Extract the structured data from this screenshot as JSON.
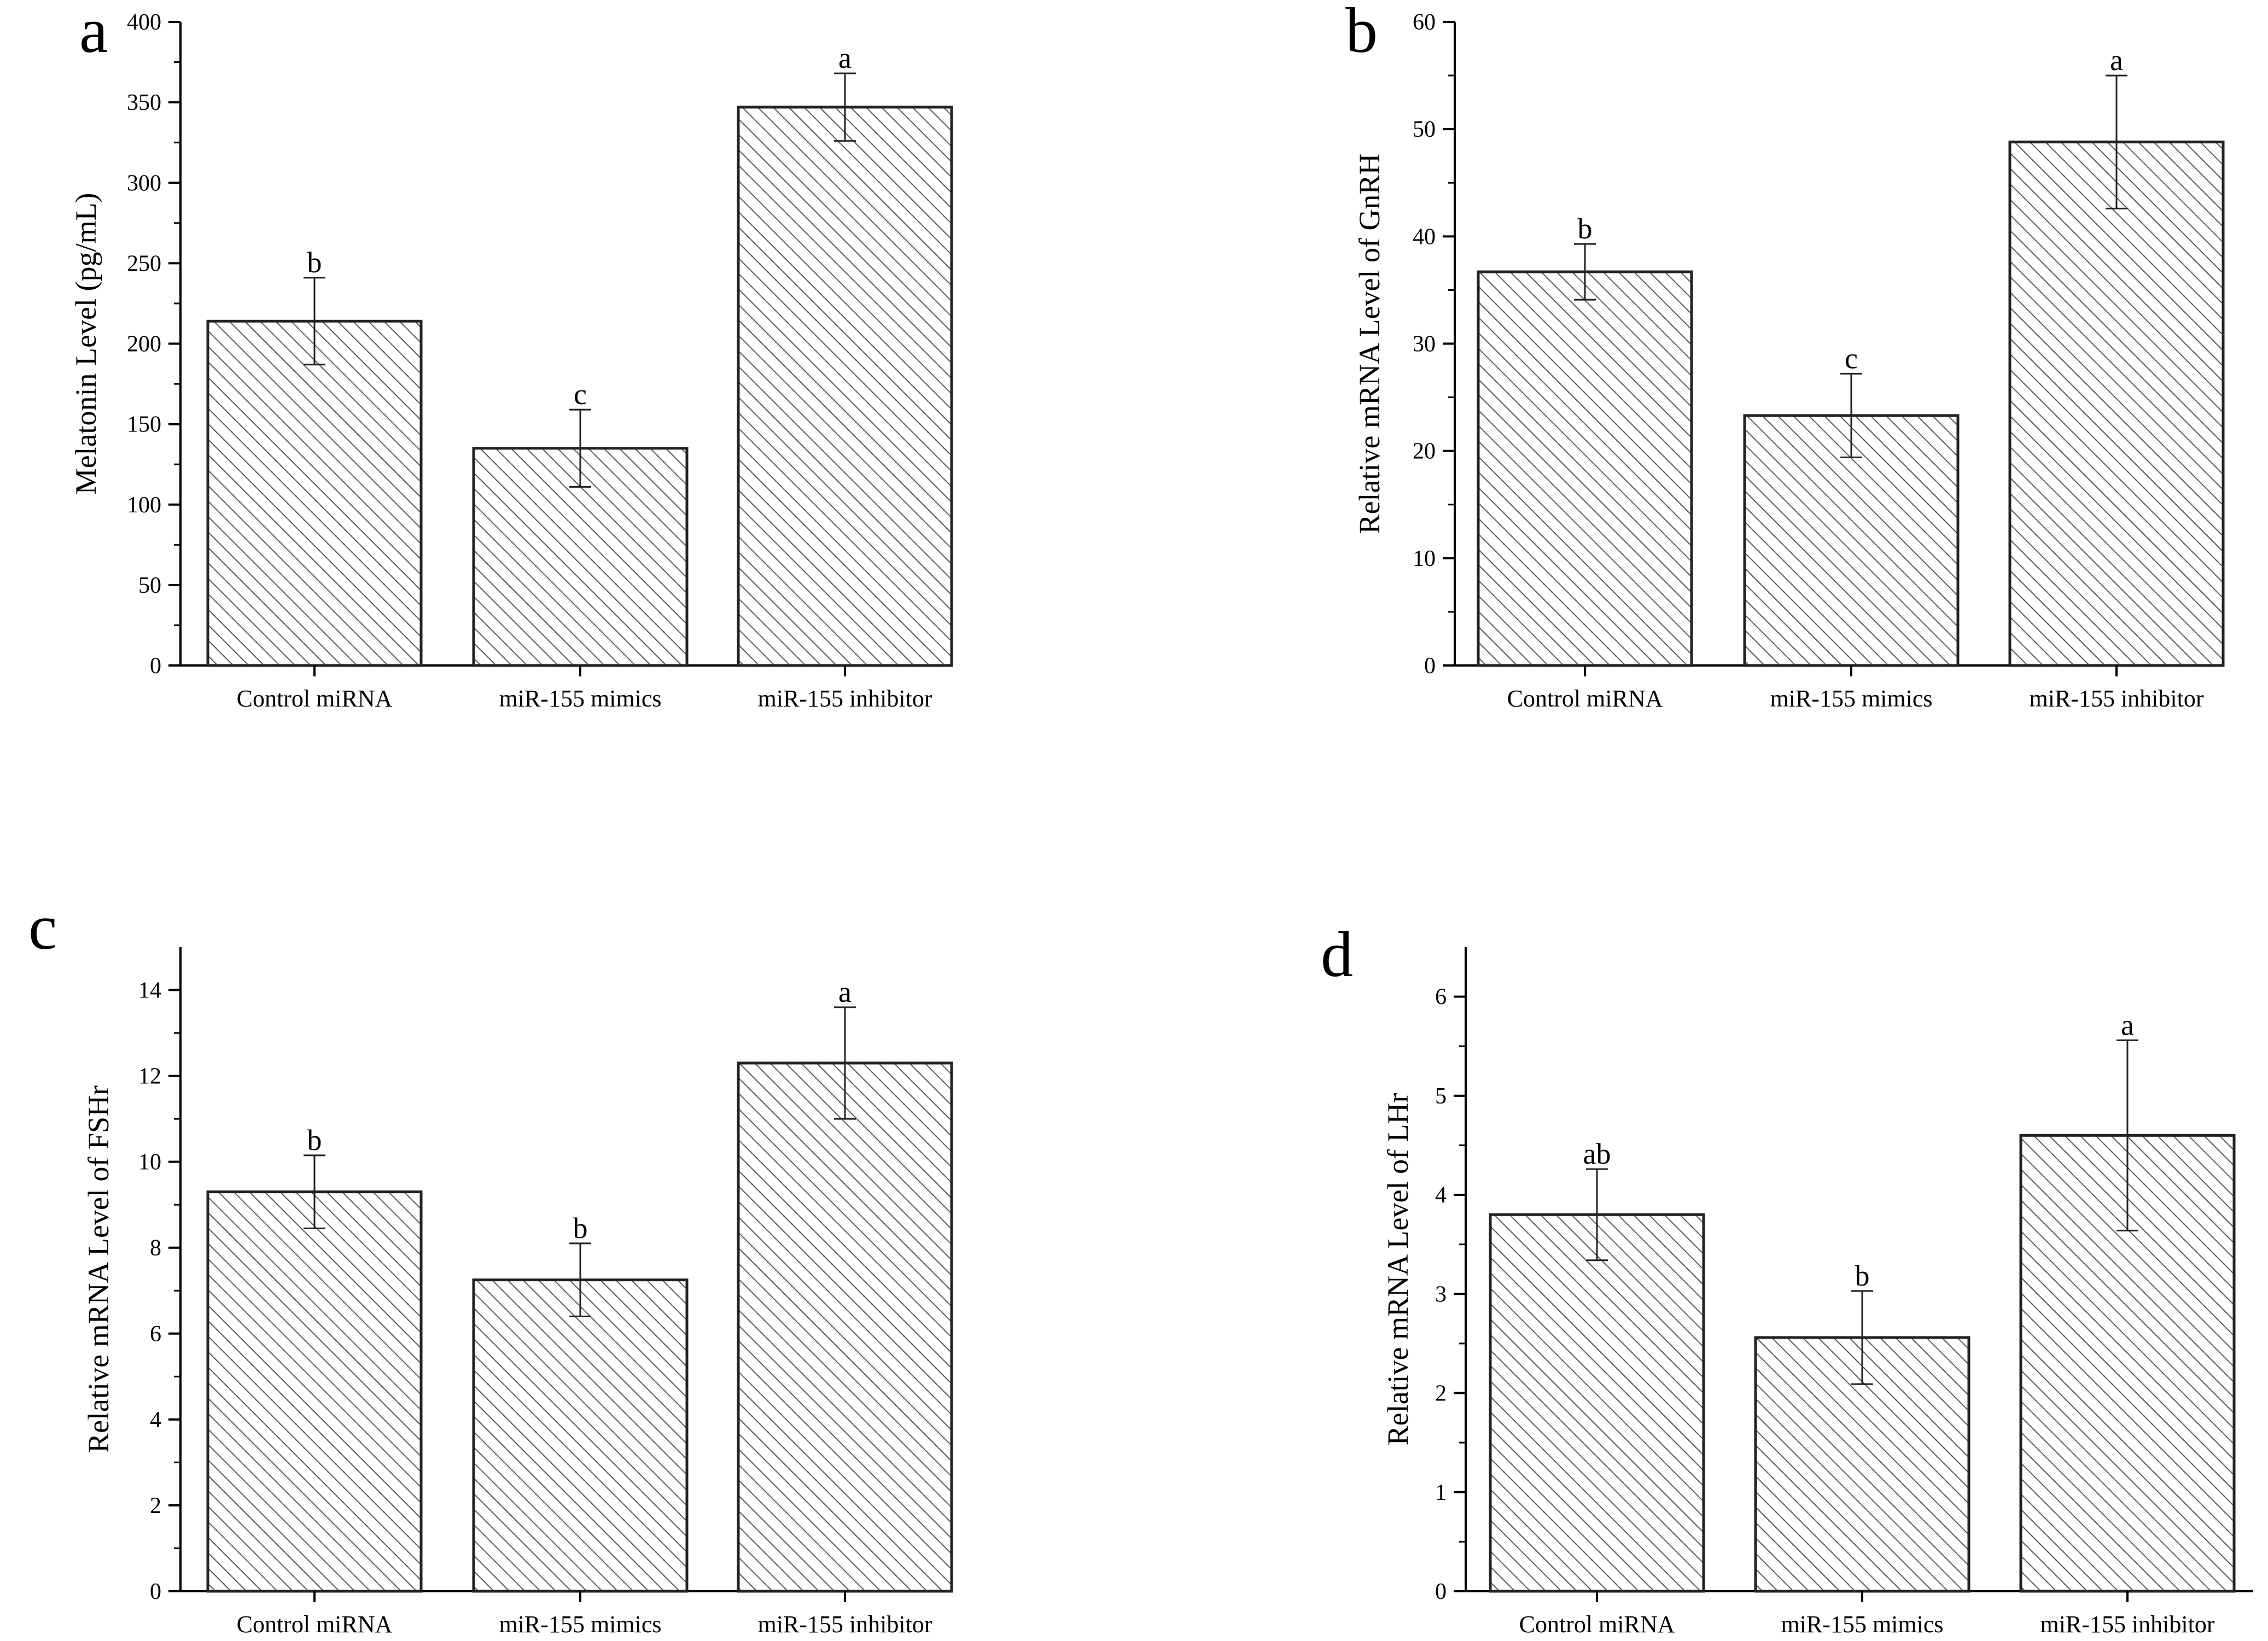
{
  "colors": {
    "bar_fill": "#ffffff",
    "hatch": "#5a5a5a",
    "axis": "#000000",
    "bar_stroke": "#222222"
  },
  "chart_data": [
    {
      "type": "bar",
      "panel_label": "a",
      "categories": [
        "Control miRNA",
        "miR-155 mimics",
        "miR-155 inhibitor"
      ],
      "values": [
        214,
        135,
        347
      ],
      "errors": [
        27,
        24,
        21
      ],
      "significance": [
        "b",
        "c",
        "a"
      ],
      "ylabel": "Melatonin Level (pg/mL)",
      "ylim": [
        0,
        400
      ],
      "yticks": [
        0,
        50,
        100,
        150,
        200,
        250,
        300,
        350,
        400
      ],
      "minor_ticks": true
    },
    {
      "type": "bar",
      "panel_label": "b",
      "categories": [
        "Control miRNA",
        "miR-155 mimics",
        "miR-155 inhibitor"
      ],
      "values": [
        36.7,
        23.3,
        48.8
      ],
      "errors": [
        2.6,
        3.9,
        6.2
      ],
      "significance": [
        "b",
        "c",
        "a"
      ],
      "ylabel": "Relative mRNA Level of GnRH",
      "ylim": [
        0,
        60
      ],
      "yticks": [
        0,
        10,
        20,
        30,
        40,
        50,
        60
      ],
      "minor_ticks": true
    },
    {
      "type": "bar",
      "panel_label": "c",
      "categories": [
        "Control miRNA",
        "miR-155 mimics",
        "miR-155 inhibitor"
      ],
      "values": [
        9.3,
        7.25,
        12.3
      ],
      "errors": [
        0.85,
        0.85,
        1.3
      ],
      "significance": [
        "b",
        "b",
        "a"
      ],
      "ylabel": "Relative mRNA Level of FSHr",
      "ylim": [
        0,
        15
      ],
      "yticks": [
        0,
        2,
        4,
        6,
        8,
        10,
        12,
        14
      ],
      "minor_ticks": true
    },
    {
      "type": "bar",
      "panel_label": "d",
      "categories": [
        "Control miRNA",
        "miR-155 mimics",
        "miR-155 inhibitor"
      ],
      "values": [
        3.8,
        2.56,
        4.6
      ],
      "errors": [
        0.46,
        0.47,
        0.96
      ],
      "significance": [
        "ab",
        "b",
        "a"
      ],
      "ylabel": "Relative mRNA Level of LHr",
      "ylim": [
        0,
        6.5
      ],
      "yticks": [
        0,
        1,
        2,
        3,
        4,
        5,
        6
      ],
      "minor_ticks": true
    }
  ]
}
